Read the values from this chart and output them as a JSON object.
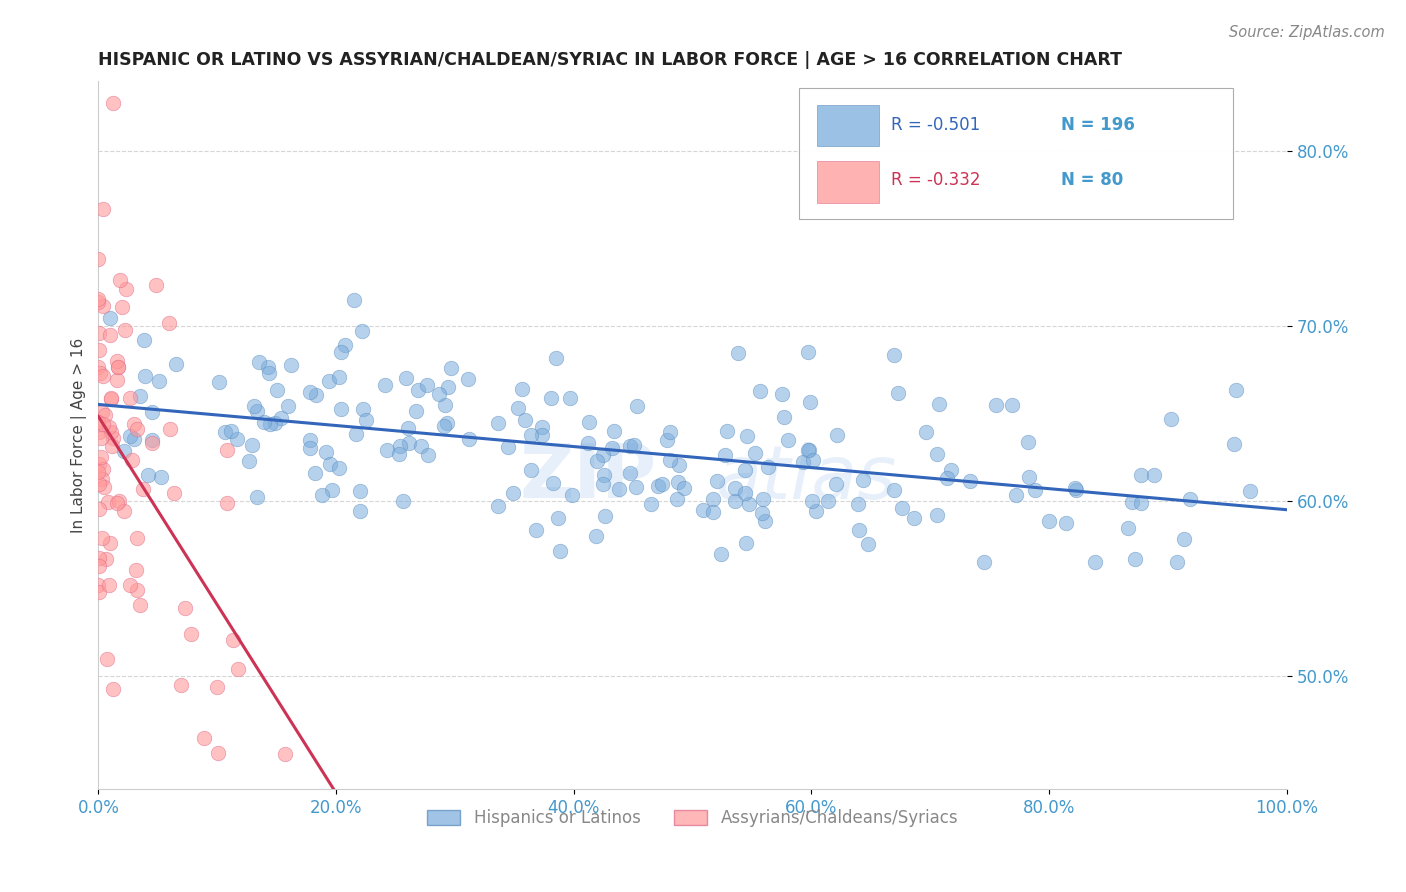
{
  "title": "HISPANIC OR LATINO VS ASSYRIAN/CHALDEAN/SYRIAC IN LABOR FORCE | AGE > 16 CORRELATION CHART",
  "source_text": "Source: ZipAtlas.com",
  "ylabel": "In Labor Force | Age > 16",
  "watermark_zip": "ZIP",
  "watermark_atlas": "atlas",
  "xlim": [
    0.0,
    1.0
  ],
  "ylim": [
    0.435,
    0.84
  ],
  "yticks": [
    0.5,
    0.6,
    0.7,
    0.8
  ],
  "ytick_labels": [
    "50.0%",
    "60.0%",
    "70.0%",
    "80.0%"
  ],
  "xticks": [
    0.0,
    0.2,
    0.4,
    0.6,
    0.8,
    1.0
  ],
  "xtick_labels": [
    "0.0%",
    "20.0%",
    "40.0%",
    "60.0%",
    "80.0%",
    "100.0%"
  ],
  "blue_color": "#7aacdc",
  "blue_edge": "#5588bb",
  "pink_color": "#ff9999",
  "pink_edge": "#dd6688",
  "blue_R": -0.501,
  "blue_N": 196,
  "pink_R": -0.332,
  "pink_N": 80,
  "blue_line_color": "#3366bb",
  "pink_line_color": "#cc3355",
  "title_color": "#222222",
  "axis_color": "#4499cc",
  "legend_label_blue": "Hispanics or Latinos",
  "legend_label_pink": "Assyrians/Chaldeans/Syriacs",
  "grid_color": "#bbbbbb",
  "background_color": "#ffffff",
  "blue_scatter_seed": 42,
  "pink_scatter_seed": 7
}
